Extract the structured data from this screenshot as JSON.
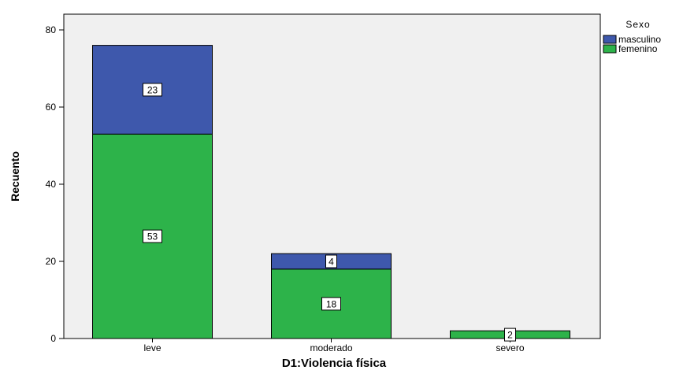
{
  "chart_data": {
    "type": "bar",
    "stacked": true,
    "categories": [
      "leve",
      "moderado",
      "severo"
    ],
    "series": [
      {
        "name": "femenino",
        "values": [
          53,
          18,
          2
        ],
        "color": "#2db34a"
      },
      {
        "name": "masculino",
        "values": [
          23,
          4,
          0
        ],
        "color": "#3e58ac"
      }
    ],
    "data_labels": [
      {
        "category": "leve",
        "series": "masculino",
        "text": "23"
      },
      {
        "category": "leve",
        "series": "femenino",
        "text": "53"
      },
      {
        "category": "moderado",
        "series": "masculino",
        "text": "4"
      },
      {
        "category": "moderado",
        "series": "femenino",
        "text": "18"
      },
      {
        "category": "severo",
        "series": "femenino",
        "text": "2"
      }
    ],
    "xlabel": "D1:Violencia física",
    "ylabel": "Recuento",
    "ylim": [
      0,
      80
    ],
    "yticks": [
      0,
      20,
      40,
      60,
      80
    ],
    "legend": {
      "title": "Sexo",
      "position": "top-right",
      "entries": [
        "masculino",
        "femenino"
      ]
    },
    "plot_background": "#f0f0f0",
    "grid": false
  }
}
